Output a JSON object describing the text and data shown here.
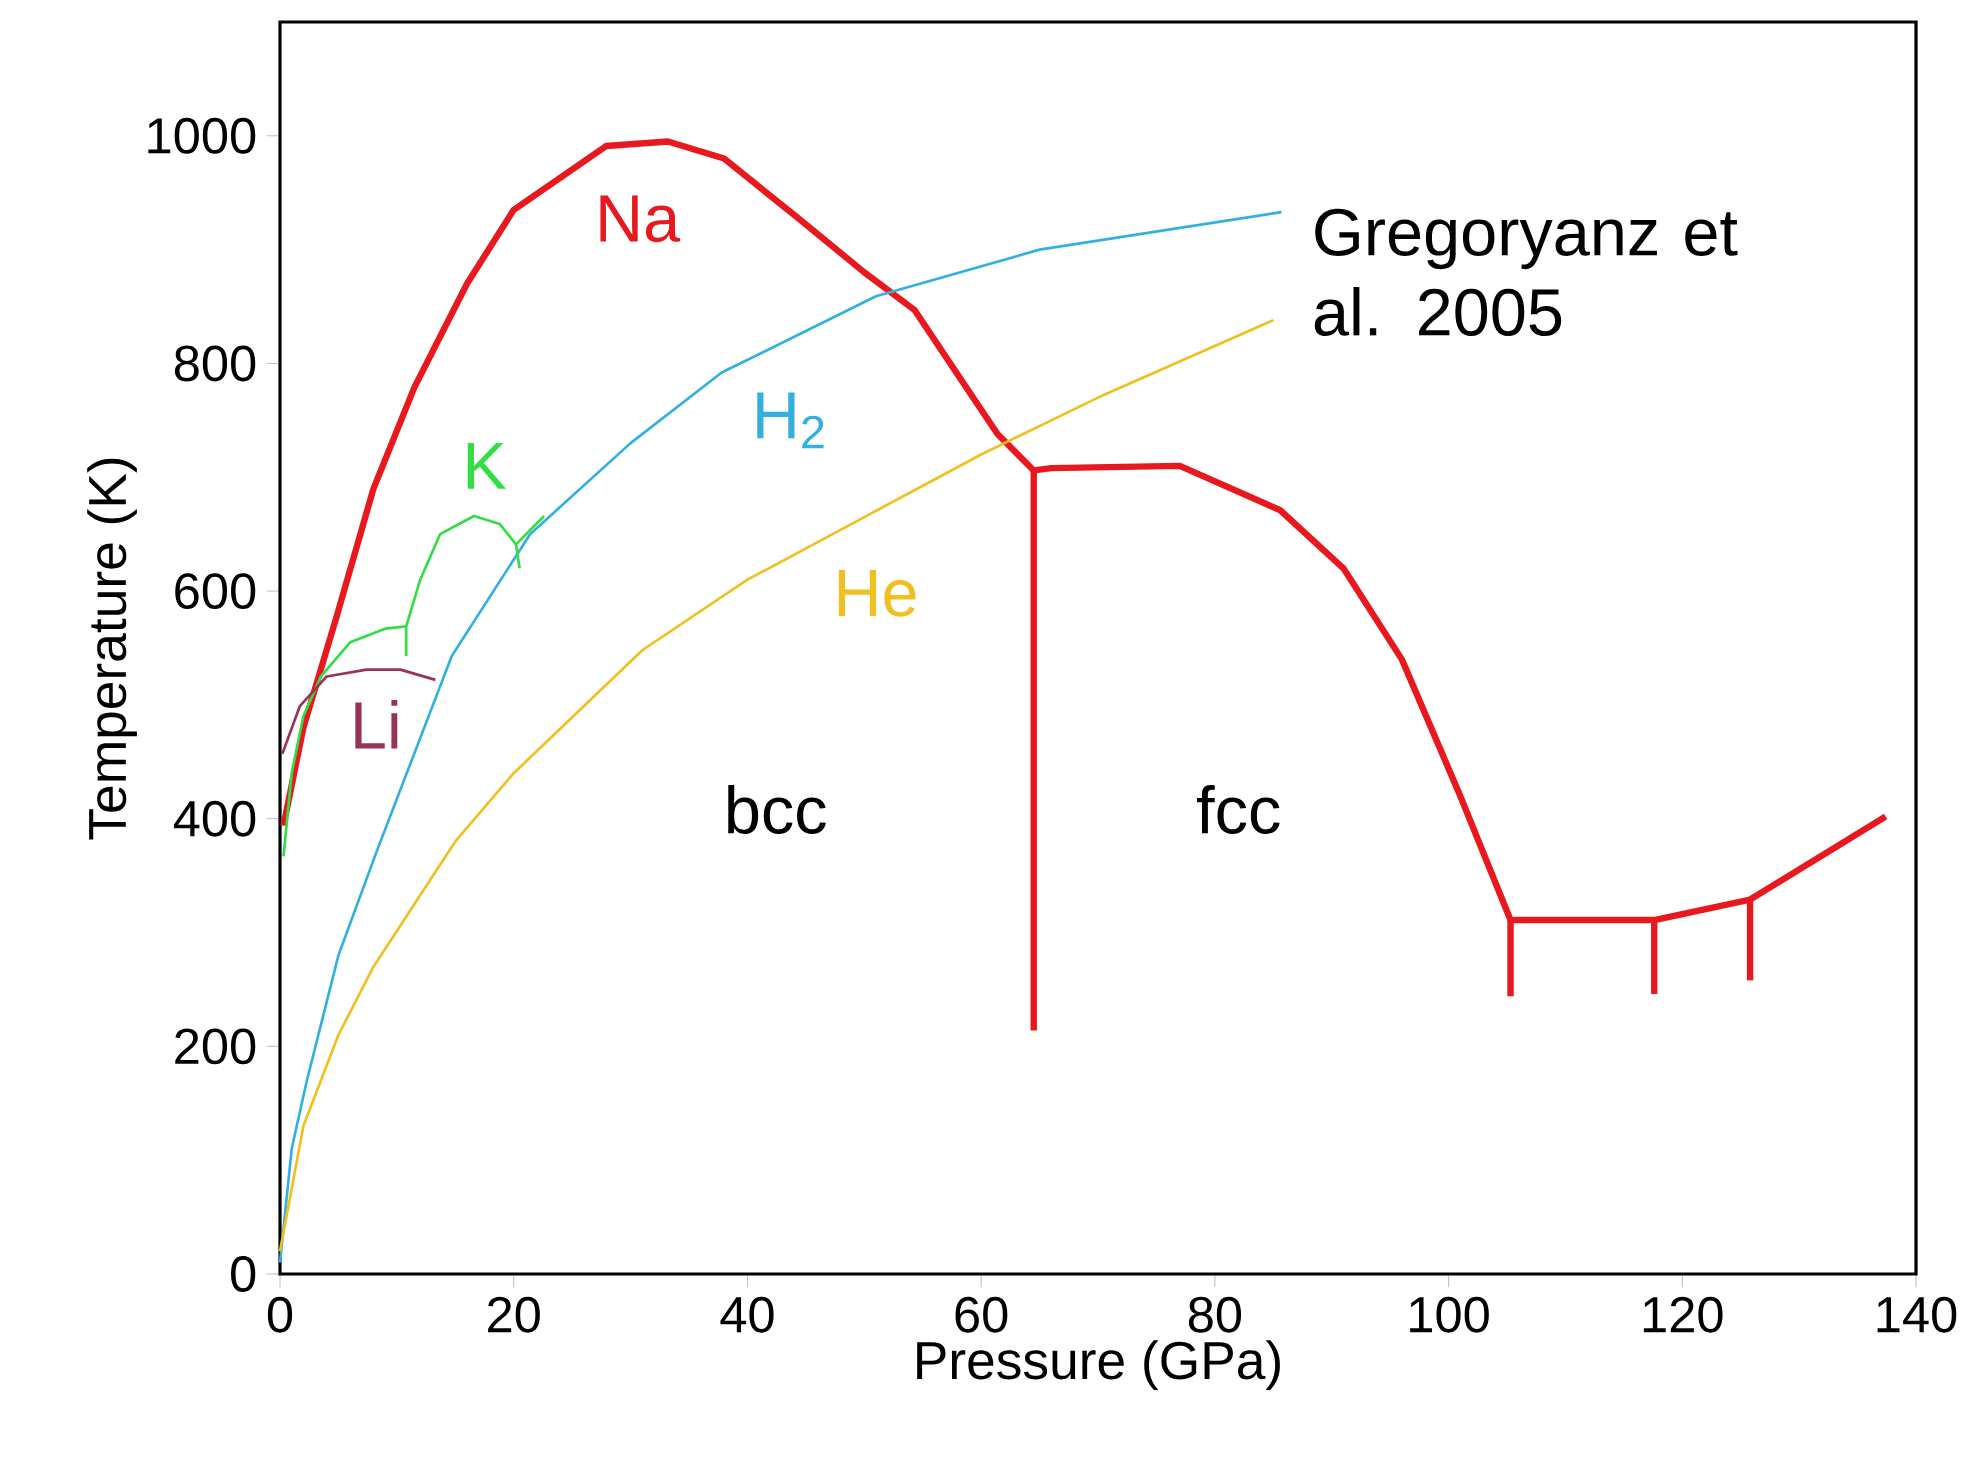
{
  "chart_data": {
    "type": "line",
    "xlabel": "Pressure (GPa)",
    "ylabel": "Temperature (K)",
    "xlim": [
      0,
      140
    ],
    "ylim": [
      0,
      1100
    ],
    "xticks": [
      0,
      20,
      40,
      60,
      80,
      100,
      120,
      140
    ],
    "yticks": [
      0,
      200,
      400,
      600,
      800,
      1000
    ],
    "grid": false,
    "legend": false,
    "marker": "none",
    "line_style": "solid",
    "series": [
      {
        "name": "Na",
        "color": "#e8191e",
        "x": [
          0.3,
          2,
          4.8,
          8,
          11.5,
          16,
          20,
          27.9,
          33.2,
          38,
          44.3,
          50,
          54.3,
          58,
          61.4,
          64.5,
          66,
          77,
          85.6,
          91,
          96,
          101,
          105.3,
          117.6,
          125.8,
          137.4
        ],
        "values": [
          394,
          480,
          576,
          690,
          779,
          870,
          935,
          991,
          995,
          980,
          928,
          880,
          847,
          790,
          738,
          706,
          708,
          710,
          671,
          620,
          540,
          420,
          311,
          311,
          329,
          402
        ]
      },
      {
        "color": "#e8191e",
        "x": [
          64.5,
          64.5
        ],
        "values": [
          706,
          214
        ]
      },
      {
        "color": "#e8191e",
        "x": [
          105.3,
          105.3
        ],
        "values": [
          311,
          244
        ]
      },
      {
        "color": "#e8191e",
        "x": [
          117.6,
          117.6
        ],
        "values": [
          311,
          246
        ]
      },
      {
        "color": "#e8191e",
        "x": [
          125.8,
          125.8
        ],
        "values": [
          329,
          258
        ]
      },
      {
        "name": "H$_{2}$",
        "color": "#33b0e0",
        "x": [
          0,
          1,
          2.3,
          5,
          8.3,
          14.7,
          21.4,
          30,
          37.8,
          51,
          65,
          85.7
        ],
        "values": [
          10,
          110,
          170,
          280,
          372,
          543,
          650,
          730,
          792,
          859,
          900,
          933
        ]
      },
      {
        "name": "He",
        "color": "#f0c020",
        "x": [
          0,
          2,
          5,
          8,
          15,
          20,
          31,
          40,
          50,
          60,
          70,
          85
        ],
        "values": [
          20,
          130,
          210,
          270,
          380,
          440,
          548,
          610,
          665,
          720,
          770,
          838
        ]
      },
      {
        "name": "K",
        "color": "#33dd44",
        "x": [
          0.3,
          1,
          2,
          3.5,
          6,
          9,
          10.8,
          12,
          13.7,
          16.6,
          18.8,
          20.2,
          22.6
        ],
        "values": [
          367,
          440,
          490,
          525,
          555,
          567,
          569,
          610,
          650,
          666,
          659,
          641,
          666
        ]
      },
      {
        "color": "#33dd44",
        "x": [
          10.8,
          10.8
        ],
        "values": [
          569,
          543
        ]
      },
      {
        "color": "#33dd44",
        "x": [
          20.2,
          20.5
        ],
        "values": [
          641,
          620
        ]
      },
      {
        "name": "Li",
        "color": "#993355",
        "x": [
          0.2,
          1.7,
          4,
          7.4,
          10.3,
          13.3
        ],
        "values": [
          457,
          499,
          525,
          531,
          531,
          522
        ]
      }
    ],
    "annotations": [
      "bcc",
      "fcc",
      "Gregoryanz et al. 2005"
    ]
  }
}
